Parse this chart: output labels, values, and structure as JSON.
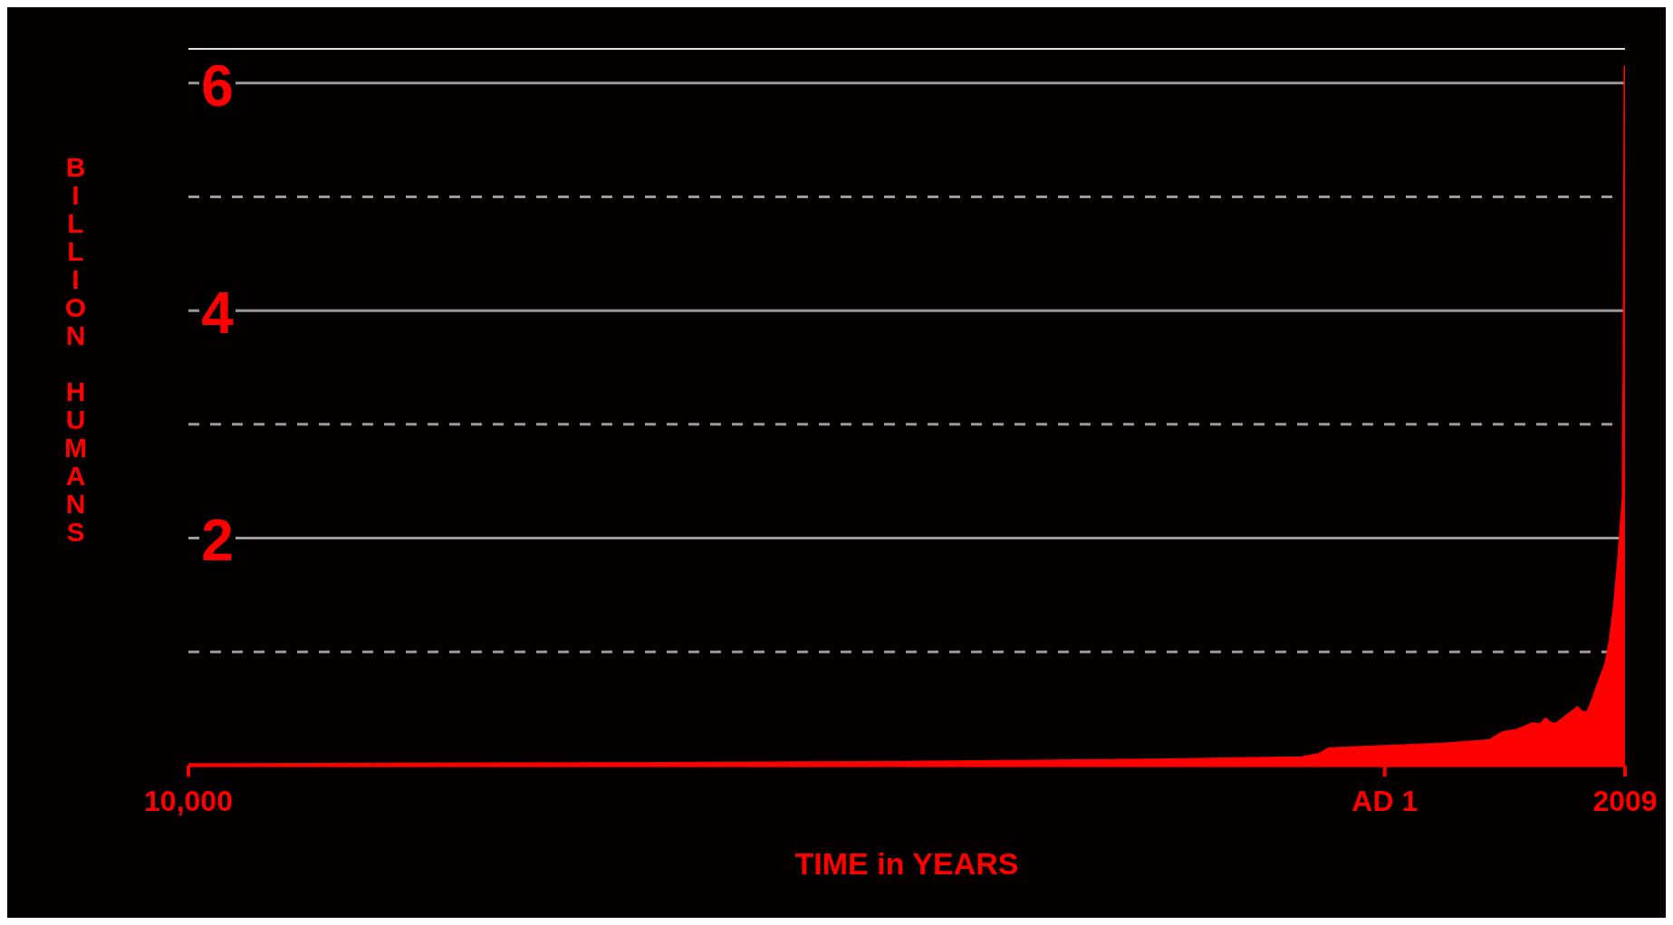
{
  "chart_data": {
    "type": "area",
    "xlabel": "TIME in YEARS",
    "ylabel": "BILLION HUMANS",
    "color": "#ff0000",
    "x": [
      -10000,
      -6000,
      -4000,
      -3000,
      -2000,
      -1000,
      -700,
      -550,
      -467,
      1,
      500,
      876,
      985,
      1100,
      1235,
      1300,
      1345,
      1380,
      1423,
      1500,
      1610,
      1650,
      1696,
      1740,
      1775,
      1850,
      1884,
      1920,
      1954,
      1975,
      1993,
      2000,
      2005,
      2009
    ],
    "values": [
      0.01,
      0.02,
      0.03,
      0.04,
      0.05,
      0.065,
      0.07,
      0.1,
      0.15,
      0.17,
      0.19,
      0.22,
      0.29,
      0.31,
      0.37,
      0.36,
      0.41,
      0.38,
      0.36,
      0.42,
      0.51,
      0.47,
      0.47,
      0.58,
      0.69,
      0.9,
      1.1,
      1.4,
      1.8,
      2.1,
      2.35,
      3.5,
      5.0,
      6.15
    ],
    "xlim": [
      -10000,
      2009
    ],
    "xticks": [
      {
        "value": -10000,
        "label": "10,000"
      },
      {
        "value": 1,
        "label": "AD 1"
      },
      2009
    ],
    "ylim": [
      0,
      6.3
    ],
    "yticks": [
      {
        "value": 1,
        "label": null
      },
      2,
      {
        "value": 3,
        "label": null
      },
      4,
      {
        "value": 5,
        "label": null
      },
      6
    ],
    "grid": "y"
  }
}
